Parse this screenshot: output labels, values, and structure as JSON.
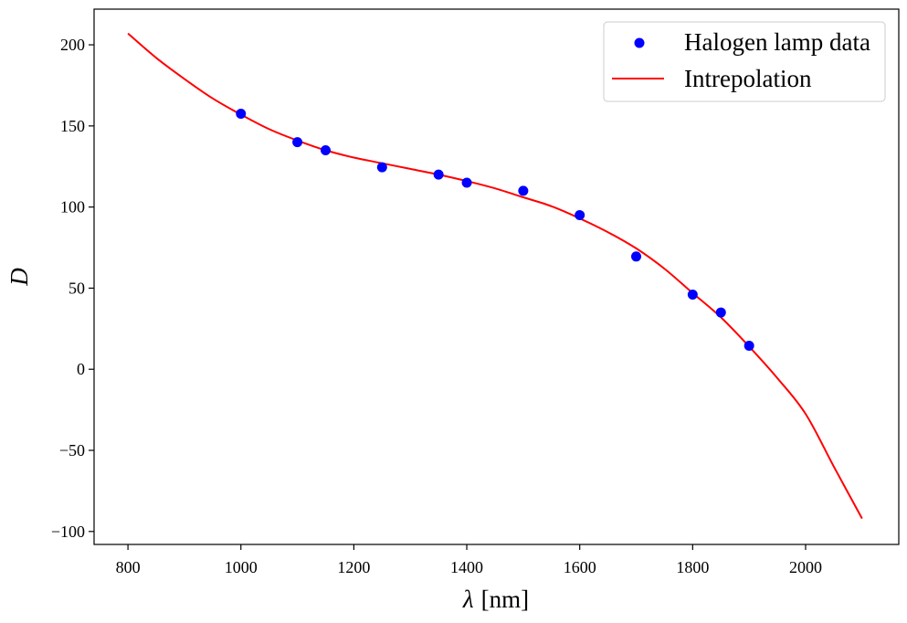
{
  "chart_data": {
    "type": "scatter",
    "title": "",
    "xlabel_symbol": "λ",
    "xlabel_unit": "[nm]",
    "ylabel": "D",
    "xlim": [
      740,
      2165
    ],
    "ylim": [
      -108,
      222
    ],
    "x_ticks": [
      800,
      1000,
      1200,
      1400,
      1600,
      1800,
      2000
    ],
    "y_ticks": [
      -100,
      -50,
      0,
      50,
      100,
      150,
      200
    ],
    "y_tick_labels": [
      "−100",
      "−50",
      "0",
      "50",
      "100",
      "150",
      "200"
    ],
    "grid": false,
    "legend_position": "top-right",
    "series": [
      {
        "name": "Halogen lamp data",
        "kind": "scatter",
        "color": "#0000ff",
        "x": [
          1000,
          1100,
          1150,
          1250,
          1350,
          1400,
          1500,
          1600,
          1700,
          1800,
          1850,
          1900
        ],
        "y": [
          157.5,
          140,
          135,
          124.5,
          120,
          115,
          110,
          95,
          69.5,
          46,
          35,
          14.5
        ]
      },
      {
        "name": "Intrepolation",
        "kind": "line",
        "color": "#ff0000",
        "x": [
          800,
          850,
          900,
          950,
          1000,
          1050,
          1100,
          1150,
          1200,
          1250,
          1300,
          1350,
          1400,
          1450,
          1500,
          1550,
          1600,
          1650,
          1700,
          1750,
          1800,
          1850,
          1900,
          1950,
          2000,
          2050,
          2100
        ],
        "y": [
          207,
          192,
          179,
          167,
          157,
          148,
          141,
          135,
          130.5,
          127,
          123.5,
          120,
          116,
          111.5,
          106,
          100.5,
          93,
          84.5,
          74.5,
          62,
          47,
          32,
          14,
          -5.5,
          -27.5,
          -60,
          -92
        ]
      }
    ]
  }
}
